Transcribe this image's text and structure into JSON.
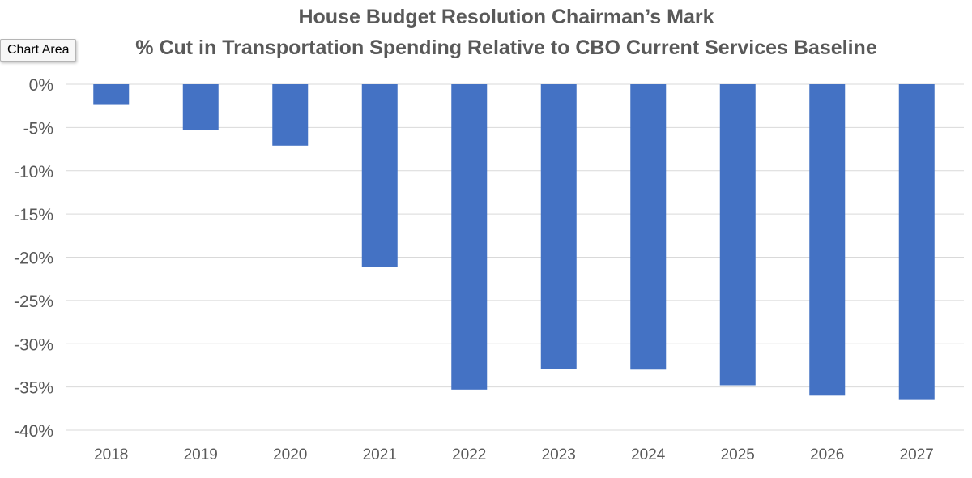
{
  "tooltip": {
    "label": "Chart Area"
  },
  "chart_data": {
    "type": "bar",
    "title": "House Budget Resolution Chairman’s Mark",
    "subtitle": "% Cut in Transportation Spending Relative to CBO Current Services Baseline",
    "xlabel": "",
    "ylabel": "",
    "categories": [
      "2018",
      "2019",
      "2020",
      "2021",
      "2022",
      "2023",
      "2024",
      "2025",
      "2026",
      "2027"
    ],
    "values": [
      -2.3,
      -5.3,
      -7.1,
      -21.1,
      -35.3,
      -32.9,
      -33.0,
      -34.8,
      -36.0,
      -36.5
    ],
    "ylim": [
      -40,
      0
    ],
    "yticks": [
      0,
      -5,
      -10,
      -15,
      -20,
      -25,
      -30,
      -35,
      -40
    ],
    "ytick_labels": [
      "0%",
      "-5%",
      "-10%",
      "-15%",
      "-20%",
      "-25%",
      "-30%",
      "-35%",
      "-40%"
    ],
    "grid": true,
    "bar_color": "#4472c4",
    "gridline_color": "#d9d9d9",
    "text_color": "#595959"
  }
}
